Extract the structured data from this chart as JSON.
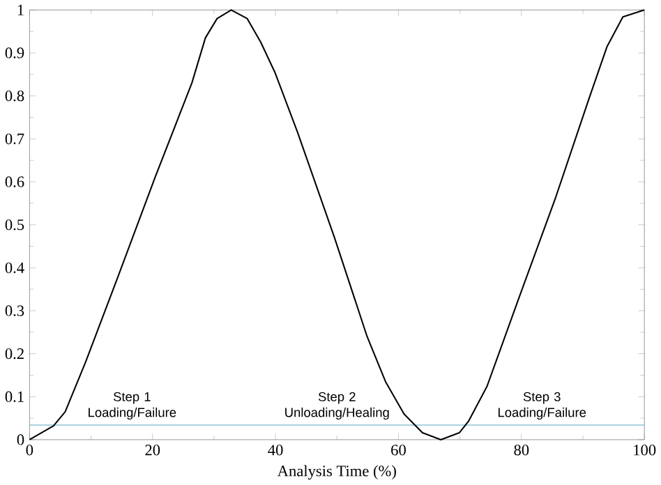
{
  "chart_data": {
    "type": "line",
    "xlabel": "Analysis Time (%)",
    "xlim": [
      0,
      100
    ],
    "ylim": [
      0,
      1
    ],
    "xticks": [
      0,
      20,
      40,
      60,
      80,
      100
    ],
    "yticks": [
      0,
      0.1,
      0.2,
      0.3,
      0.4,
      0.5,
      0.6,
      0.7,
      0.8,
      0.9,
      1
    ],
    "marker": "none",
    "line_style": "solid",
    "series": [
      {
        "color": "#000000",
        "x": [
          0,
          3.9,
          5.8,
          9.1,
          14.4,
          20.4,
          26.4,
          28.6,
          30.5,
          32.8,
          35.4,
          37.6,
          39.9,
          43.6,
          49.6,
          54.9,
          57.9,
          60.9,
          63.9,
          66.9,
          69.9,
          71.4,
          74.4,
          79.6,
          85.6,
          90.9,
          93.9,
          96.5,
          100
        ],
        "values": [
          0,
          0.032,
          0.065,
          0.18,
          0.38,
          0.61,
          0.83,
          0.935,
          0.98,
          1.0,
          0.98,
          0.925,
          0.855,
          0.715,
          0.47,
          0.24,
          0.135,
          0.06,
          0.016,
          0,
          0.016,
          0.043,
          0.124,
          0.33,
          0.565,
          0.79,
          0.914,
          0.984,
          1
        ]
      }
    ],
    "ref_lines": [
      {
        "axis": "y",
        "value": 0.034,
        "color": "#8fc3d9"
      }
    ],
    "annotations": [
      "Step 1 Loading/Failure",
      "Step 2 Unloading/Healing",
      "Step 3 Loading/Failure"
    ]
  }
}
